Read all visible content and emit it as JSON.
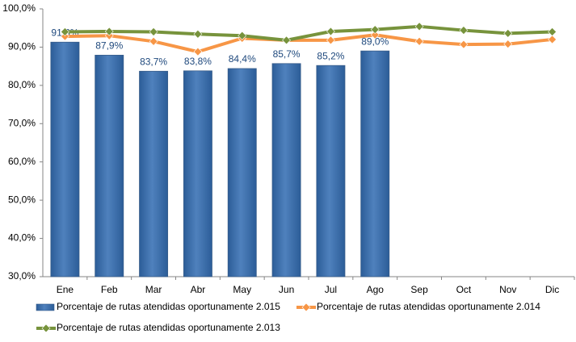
{
  "chart_data": {
    "type": "bar",
    "categories": [
      "Ene",
      "Feb",
      "Mar",
      "Abr",
      "May",
      "Jun",
      "Jul",
      "Ago",
      "Sep",
      "Oct",
      "Nov",
      "Dic"
    ],
    "series": [
      {
        "name": "Porcentaje de rutas atendidas oportunamente 2.015",
        "type": "bar",
        "color": "#4f81bd",
        "values": [
          91.3,
          87.9,
          83.7,
          83.8,
          84.4,
          85.7,
          85.2,
          89.0,
          null,
          null,
          null,
          null
        ],
        "value_labels": [
          "91,3%",
          "87,9%",
          "83,7%",
          "83,8%",
          "84,4%",
          "85,7%",
          "85,2%",
          "89,0%",
          null,
          null,
          null,
          null
        ]
      },
      {
        "name": "Porcentaje de rutas atendidas oportunamente 2.014",
        "type": "line",
        "color": "#f79646",
        "values": [
          92.8,
          93.0,
          91.5,
          88.8,
          92.3,
          91.8,
          91.8,
          93.2,
          91.5,
          90.7,
          90.8,
          92.0
        ]
      },
      {
        "name": "Porcentaje de rutas atendidas oportunamente 2.013",
        "type": "line",
        "color": "#77933c",
        "values": [
          94.0,
          94.1,
          94.0,
          93.4,
          93.0,
          91.8,
          94.1,
          94.6,
          95.4,
          94.4,
          93.6,
          94.0
        ]
      }
    ],
    "ylim": [
      30,
      100
    ],
    "yticks": [
      {
        "value": 30,
        "label": "30,0%"
      },
      {
        "value": 40,
        "label": "40,0%"
      },
      {
        "value": 50,
        "label": "50,0%"
      },
      {
        "value": 60,
        "label": "60,0%"
      },
      {
        "value": 70,
        "label": "70,0%"
      },
      {
        "value": 80,
        "label": "80,0%"
      },
      {
        "value": 90,
        "label": "90,0%"
      },
      {
        "value": 100,
        "label": "100,0%"
      }
    ]
  }
}
